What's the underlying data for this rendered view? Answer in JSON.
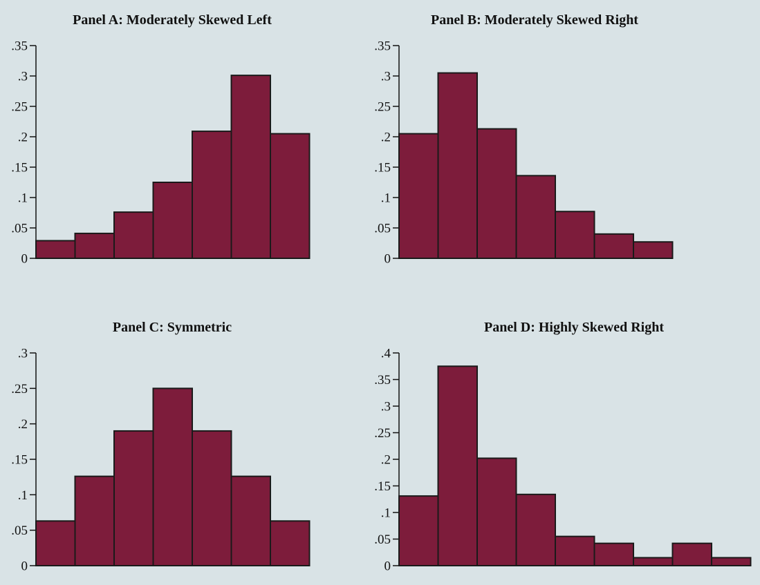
{
  "chart_data": [
    {
      "type": "bar",
      "title": "Panel A: Moderately Skewed Left",
      "yticks": [
        0,
        0.05,
        0.1,
        0.15,
        0.2,
        0.25,
        0.3,
        0.35
      ],
      "ytick_labels": [
        "0",
        ".05",
        ".1",
        ".15",
        ".2",
        ".25",
        ".3",
        ".35"
      ],
      "ylim": [
        0,
        0.35
      ],
      "values": [
        0.029,
        0.041,
        0.076,
        0.125,
        0.209,
        0.301,
        0.205
      ],
      "color": "#7d1c3b"
    },
    {
      "type": "bar",
      "title": "Panel B: Moderately Skewed Right",
      "yticks": [
        0,
        0.05,
        0.1,
        0.15,
        0.2,
        0.25,
        0.3,
        0.35
      ],
      "ytick_labels": [
        "0",
        ".05",
        ".1",
        ".15",
        ".2",
        ".25",
        ".3",
        ".35"
      ],
      "ylim": [
        0,
        0.35
      ],
      "values": [
        0.205,
        0.305,
        0.213,
        0.136,
        0.077,
        0.04,
        0.027
      ],
      "color": "#7d1c3b"
    },
    {
      "type": "bar",
      "title": "Panel C: Symmetric",
      "yticks": [
        0,
        0.05,
        0.1,
        0.15,
        0.2,
        0.25,
        0.3
      ],
      "ytick_labels": [
        "0",
        ".05",
        ".1",
        ".15",
        ".2",
        ".25",
        ".3"
      ],
      "ylim": [
        0,
        0.3
      ],
      "values": [
        0.063,
        0.126,
        0.19,
        0.25,
        0.19,
        0.126,
        0.063
      ],
      "color": "#7d1c3b"
    },
    {
      "type": "bar",
      "title": "Panel D: Highly Skewed Right",
      "yticks": [
        0,
        0.05,
        0.1,
        0.15,
        0.2,
        0.25,
        0.3,
        0.35,
        0.4
      ],
      "ytick_labels": [
        "0",
        ".05",
        ".1",
        ".15",
        ".2",
        ".25",
        ".3",
        ".35",
        ".4"
      ],
      "ylim": [
        0,
        0.4
      ],
      "values": [
        0.131,
        0.375,
        0.202,
        0.134,
        0.055,
        0.042,
        0.015,
        0.042,
        0.015
      ],
      "color": "#7d1c3b"
    }
  ]
}
